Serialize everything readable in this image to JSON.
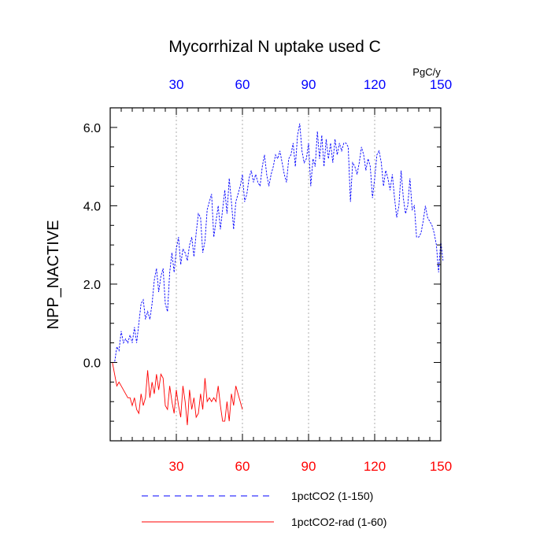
{
  "chart_data": {
    "type": "line",
    "title": "Mycorrhizal N uptake used C",
    "ylabel": "NPP_NACTIVE",
    "top_axis_unit": "PgC/y",
    "xlim": [
      0,
      150
    ],
    "ylim": [
      -2.0,
      6.5
    ],
    "x_ticks": [
      30,
      60,
      90,
      120,
      150
    ],
    "y_ticks": [
      0.0,
      2.0,
      4.0,
      6.0
    ],
    "y_tick_labels": [
      "0.0",
      "2.0",
      "4.0",
      "6.0"
    ],
    "vertical_gridlines_at": [
      30,
      60,
      90,
      120
    ],
    "colors": {
      "top_axis": "#0000ff",
      "bottom_axis": "#ff0000",
      "series1": "#0000ff",
      "series2": "#ff0000"
    },
    "legend_position": "bottom",
    "series": [
      {
        "name": "1pctCO2 (1-150)",
        "style": "dashed",
        "color": "#0000ff",
        "x_start": 1,
        "values": [
          0.0,
          0.0,
          0.4,
          0.3,
          0.8,
          0.5,
          0.6,
          0.5,
          0.7,
          0.5,
          0.9,
          0.5,
          1.0,
          1.5,
          1.6,
          1.1,
          1.3,
          1.1,
          1.5,
          2.1,
          2.4,
          1.8,
          2.2,
          2.4,
          1.5,
          1.3,
          2.3,
          2.8,
          2.3,
          2.9,
          3.2,
          2.5,
          2.9,
          2.8,
          2.6,
          3.0,
          3.2,
          2.7,
          3.3,
          3.8,
          3.7,
          2.8,
          3.1,
          3.9,
          4.1,
          4.3,
          3.2,
          3.6,
          4.0,
          3.4,
          3.9,
          4.4,
          3.8,
          4.7,
          4.1,
          3.4,
          4.1,
          4.3,
          4.5,
          4.8,
          4.1,
          4.3,
          4.7,
          4.9,
          4.6,
          4.8,
          4.6,
          4.5,
          5.0,
          5.3,
          4.8,
          4.5,
          4.8,
          5.0,
          5.3,
          5.2,
          5.4,
          5.1,
          4.8,
          4.6,
          5.2,
          5.3,
          5.6,
          5.0,
          5.8,
          6.1,
          5.4,
          5.1,
          5.2,
          5.6,
          4.5,
          5.2,
          5.0,
          5.9,
          5.2,
          5.8,
          5.0,
          5.7,
          5.2,
          5.6,
          5.1,
          5.7,
          5.3,
          5.6,
          5.4,
          5.6,
          5.6,
          5.5,
          4.1,
          5.1,
          5.0,
          4.8,
          5.1,
          5.5,
          5.3,
          4.9,
          5.2,
          5.0,
          4.2,
          4.7,
          5.3,
          5.4,
          5.1,
          4.5,
          4.9,
          4.7,
          4.4,
          4.8,
          4.2,
          3.7,
          4.0,
          4.9,
          4.2,
          3.8,
          4.0,
          4.7,
          3.9,
          4.0,
          3.2,
          3.2,
          3.3,
          3.6,
          4.0,
          3.7,
          3.6,
          3.5,
          3.3,
          3.0,
          2.3,
          3.1,
          2.6
        ]
      },
      {
        "name": "1pctCO2-rad (1-60)",
        "style": "solid",
        "color": "#ff0000",
        "x_start": 1,
        "values": [
          0.0,
          -0.3,
          -0.6,
          -0.5,
          -0.6,
          -0.7,
          -0.8,
          -0.9,
          -0.9,
          -1.1,
          -0.9,
          -1.2,
          -1.3,
          -0.8,
          -1.1,
          -0.9,
          -0.2,
          -0.9,
          -0.5,
          -0.8,
          -0.3,
          -0.7,
          -0.3,
          -0.4,
          -1.1,
          -1.2,
          -0.6,
          -1.0,
          -1.3,
          -0.7,
          -1.1,
          -1.4,
          -0.6,
          -1.0,
          -1.6,
          -0.7,
          -1.2,
          -0.9,
          -1.4,
          -1.3,
          -0.8,
          -1.2,
          -0.4,
          -1.0,
          -0.9,
          -1.0,
          -0.9,
          -1.0,
          -0.6,
          -1.1,
          -1.5,
          -1.5,
          -1.0,
          -1.5,
          -0.8,
          -1.1,
          -0.6,
          -0.8,
          -1.0,
          -1.2
        ]
      }
    ]
  }
}
